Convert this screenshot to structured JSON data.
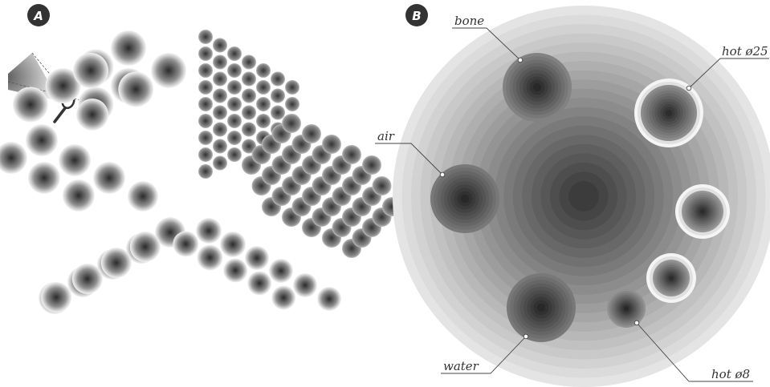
{
  "panels": {
    "a": {
      "label": "A"
    },
    "b": {
      "label": "B"
    }
  },
  "callouts": {
    "bone": "bone",
    "hot25": "hot ø25",
    "air": "air",
    "water": "water",
    "hot8": "hot ø8"
  },
  "colors": {
    "badge": "#333333",
    "ink": "#333333",
    "rod_dark": "#2e2e2e",
    "rod_light": "#f2f2f2",
    "phantom_core": "#3c3c3c",
    "phantom_rim": "#e4e4e4"
  },
  "icons": {
    "magnifier": "magnifier-icon",
    "fan_beam": "fan-beam-icon"
  }
}
